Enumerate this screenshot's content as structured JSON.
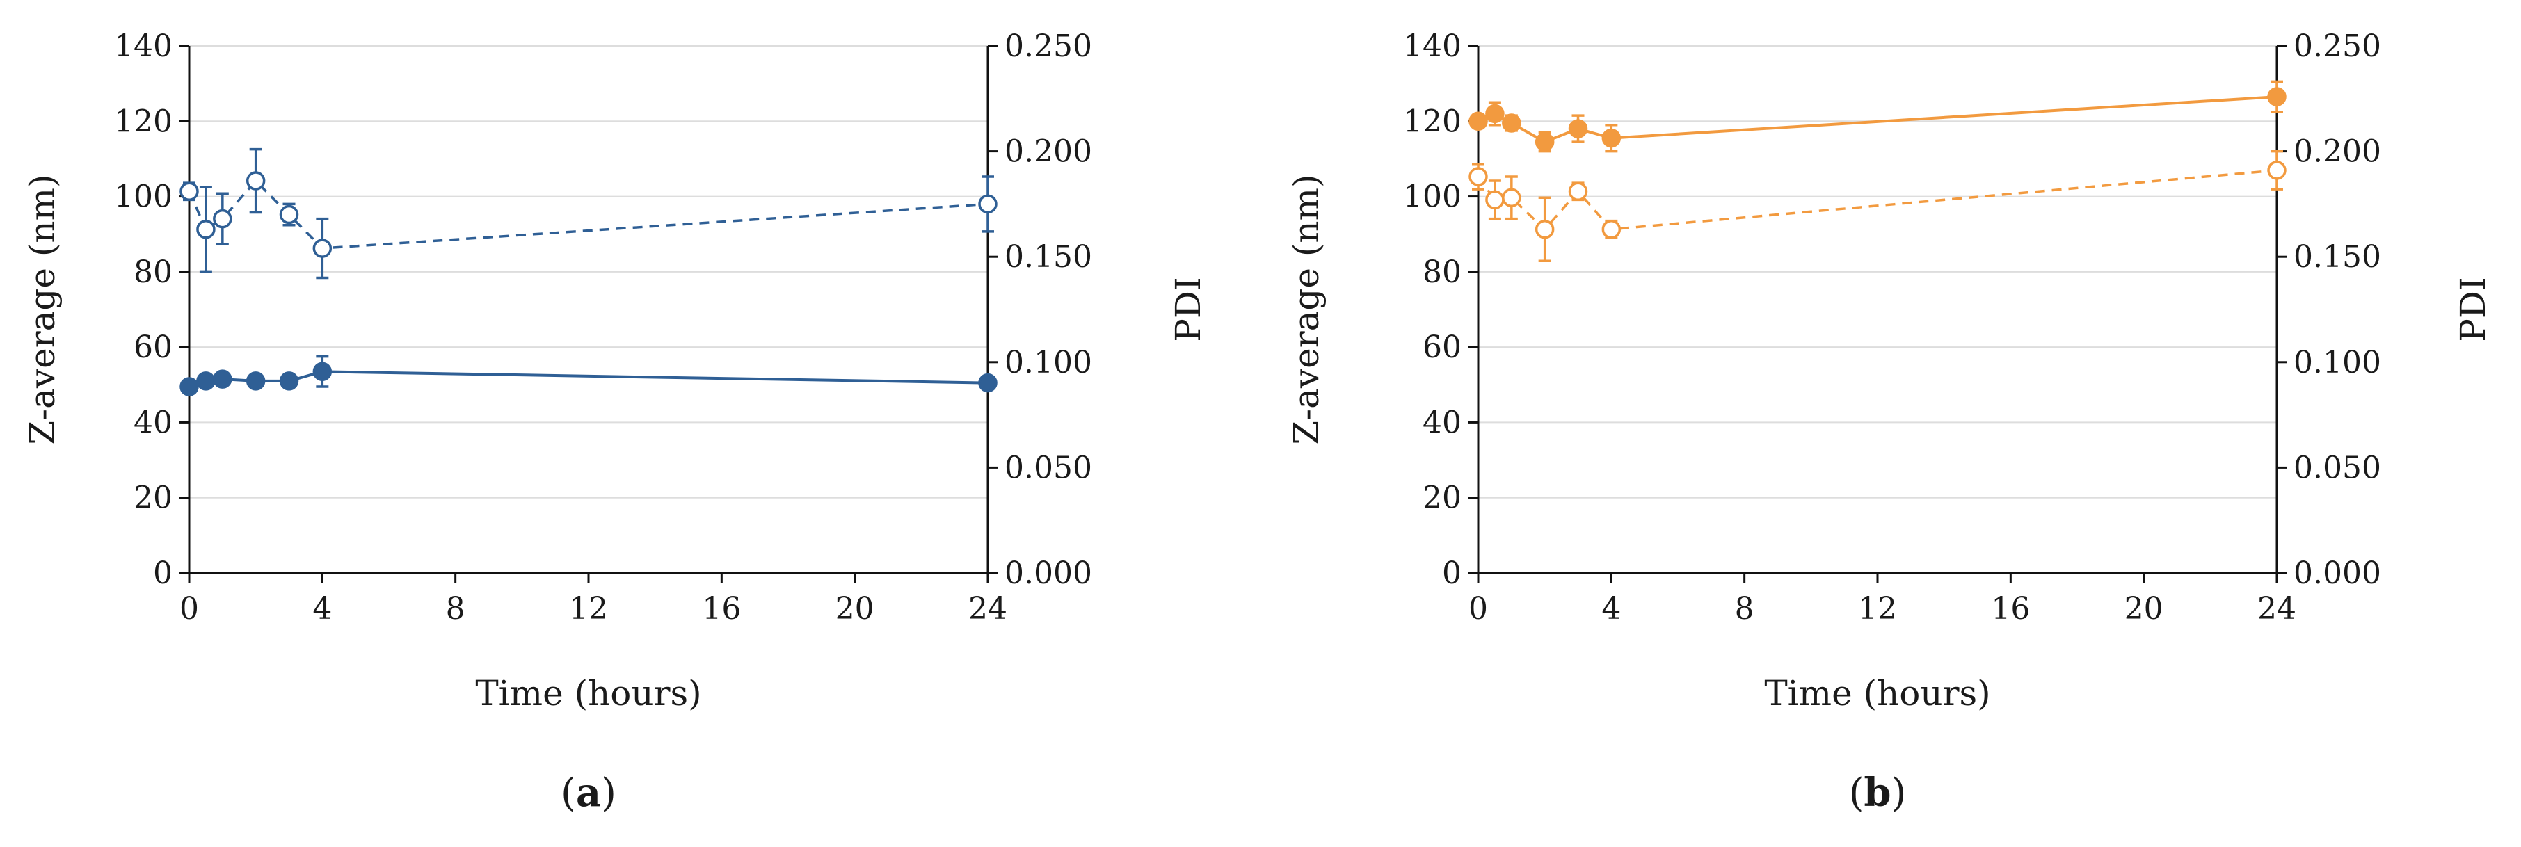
{
  "colors": {
    "panel_a_series": "#2f5f95",
    "panel_b_series": "#f29a3f",
    "axis": "#111111",
    "grid": "#dddddd"
  },
  "chart_data": [
    {
      "type": "line",
      "panel_label": "a",
      "xlabel": "Time (hours)",
      "ylabel": "Z-average (nm)",
      "y2label": "PDI",
      "xlim": [
        0,
        24
      ],
      "xticks": [
        0,
        4,
        8,
        12,
        16,
        20,
        24
      ],
      "ylim": [
        0,
        140
      ],
      "yticks": [
        0,
        20,
        40,
        60,
        80,
        100,
        120,
        140
      ],
      "y2lim": [
        0,
        0.25
      ],
      "y2ticks": [
        "0.000",
        "0.050",
        "0.100",
        "0.150",
        "0.200",
        "0.250"
      ],
      "grid": true,
      "series": [
        {
          "name": "Z-average",
          "axis": "left",
          "style": "solid",
          "marker": "filled-circle",
          "x": [
            0,
            0.5,
            1,
            2,
            3,
            4,
            24
          ],
          "values": [
            49.5,
            51,
            51.5,
            51,
            51,
            53.5,
            50.5
          ],
          "errors": [
            0,
            0.5,
            0.5,
            0.5,
            0.5,
            4,
            0.5
          ]
        },
        {
          "name": "PDI",
          "axis": "right",
          "style": "dashed",
          "marker": "open-circle",
          "x": [
            0,
            0.5,
            1,
            2,
            3,
            4,
            24
          ],
          "values": [
            0.181,
            0.163,
            0.168,
            0.186,
            0.17,
            0.154,
            0.175
          ],
          "errors": [
            0.004,
            0.02,
            0.012,
            0.015,
            0.005,
            0.014,
            0.013
          ]
        }
      ]
    },
    {
      "type": "line",
      "panel_label": "b",
      "xlabel": "Time (hours)",
      "ylabel": "Z-average (nm)",
      "y2label": "PDI",
      "xlim": [
        0,
        24
      ],
      "xticks": [
        0,
        4,
        8,
        12,
        16,
        20,
        24
      ],
      "ylim": [
        0,
        140
      ],
      "yticks": [
        0,
        20,
        40,
        60,
        80,
        100,
        120,
        140
      ],
      "y2lim": [
        0,
        0.25
      ],
      "y2ticks": [
        "0.000",
        "0.050",
        "0.100",
        "0.150",
        "0.200",
        "0.250"
      ],
      "grid": true,
      "series": [
        {
          "name": "Z-average",
          "axis": "left",
          "style": "solid",
          "marker": "filled-circle",
          "x": [
            0,
            0.5,
            1,
            2,
            3,
            4,
            24
          ],
          "values": [
            120,
            122,
            119.5,
            114.5,
            118,
            115.5,
            126.5
          ],
          "errors": [
            1,
            3,
            2,
            2.5,
            3.5,
            3.5,
            4
          ]
        },
        {
          "name": "PDI",
          "axis": "right",
          "style": "dashed",
          "marker": "open-circle",
          "x": [
            0,
            0.5,
            1,
            2,
            3,
            4,
            24
          ],
          "values": [
            0.188,
            0.177,
            0.178,
            0.163,
            0.181,
            0.163,
            0.191
          ],
          "errors": [
            0.006,
            0.009,
            0.01,
            0.015,
            0.004,
            0.004,
            0.009
          ]
        }
      ]
    }
  ]
}
